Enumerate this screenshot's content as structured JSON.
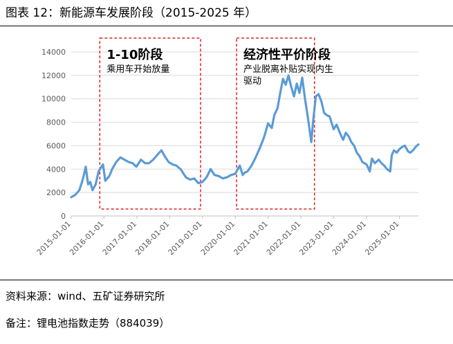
{
  "title": "图表 12：新能源车发展阶段（2015-2025 年）",
  "source": "资料来源：wind、五矿证券研究所",
  "note": "备注：锂电池指数走势（884039）",
  "colors": {
    "line": "#5b9bd5",
    "box": "#e02020",
    "grid": "#d9d9d9",
    "axis": "#bfbfbf"
  },
  "chart_data": {
    "type": "line",
    "title": "",
    "xlabel": "",
    "ylabel": "",
    "ylim": [
      0,
      14000
    ],
    "yticks": [
      0,
      2000,
      4000,
      6000,
      8000,
      10000,
      12000,
      14000
    ],
    "xticks": [
      "2015-01-01",
      "2016-01-01",
      "2017-01-01",
      "2018-01-01",
      "2019-01-01",
      "2020-01-01",
      "2021-01-01",
      "2022-01-01",
      "2023-01-01",
      "2024-01-01",
      "2025-01-01"
    ],
    "xrange": [
      "2015-01-01",
      "2025-07-31"
    ],
    "grid": "horizontal",
    "series": [
      {
        "name": "",
        "x": [
          "2015-01-01",
          "2015-02-15",
          "2015-04-01",
          "2015-05-01",
          "2015-05-25",
          "2015-06-12",
          "2015-07-08",
          "2015-08-01",
          "2015-08-26",
          "2015-09-30",
          "2015-11-01",
          "2015-12-20",
          "2016-01-15",
          "2016-02-28",
          "2016-04-01",
          "2016-05-15",
          "2016-07-01",
          "2016-08-15",
          "2016-10-01",
          "2016-11-15",
          "2016-12-25",
          "2017-02-15",
          "2017-04-01",
          "2017-05-15",
          "2017-07-01",
          "2017-08-15",
          "2017-10-01",
          "2017-11-15",
          "2017-12-20",
          "2018-02-01",
          "2018-03-15",
          "2018-05-01",
          "2018-06-30",
          "2018-08-15",
          "2018-10-01",
          "2018-11-15",
          "2018-12-31",
          "2019-02-15",
          "2019-04-01",
          "2019-05-15",
          "2019-07-01",
          "2019-08-15",
          "2019-10-01",
          "2019-11-15",
          "2019-12-31",
          "2020-02-20",
          "2020-03-23",
          "2020-04-15",
          "2020-05-15",
          "2020-06-30",
          "2020-08-15",
          "2020-09-30",
          "2020-11-15",
          "2020-12-31",
          "2021-02-10",
          "2021-03-10",
          "2021-04-15",
          "2021-05-15",
          "2021-06-15",
          "2021-07-15",
          "2021-08-15",
          "2021-09-15",
          "2021-10-15",
          "2021-11-15",
          "2021-12-15",
          "2022-01-15",
          "2022-02-15",
          "2022-03-15",
          "2022-04-26",
          "2022-05-15",
          "2022-06-15",
          "2022-07-15",
          "2022-08-15",
          "2022-09-15",
          "2022-10-15",
          "2022-11-15",
          "2022-12-31",
          "2023-02-01",
          "2023-03-15",
          "2023-04-15",
          "2023-05-15",
          "2023-06-15",
          "2023-07-15",
          "2023-08-15",
          "2023-09-15",
          "2023-10-15",
          "2023-11-15",
          "2023-12-31",
          "2024-01-20",
          "2024-02-05",
          "2024-03-01",
          "2024-04-01",
          "2024-05-15",
          "2024-06-15",
          "2024-07-15",
          "2024-08-15",
          "2024-09-20",
          "2024-10-08",
          "2024-11-01",
          "2024-12-01",
          "2025-01-01",
          "2025-02-01",
          "2025-03-01",
          "2025-04-08",
          "2025-05-01",
          "2025-06-01",
          "2025-07-01",
          "2025-07-31"
        ],
        "y": [
          1600,
          1800,
          2200,
          2900,
          3600,
          4200,
          2700,
          2900,
          2200,
          2700,
          3800,
          4400,
          3000,
          3400,
          4000,
          4600,
          5000,
          4800,
          4600,
          4500,
          4200,
          4800,
          4500,
          4500,
          4800,
          5200,
          5600,
          5000,
          4600,
          4400,
          4300,
          4000,
          3300,
          3100,
          3200,
          2800,
          2900,
          3300,
          4000,
          3500,
          3400,
          3200,
          3300,
          3500,
          3600,
          4300,
          3500,
          3700,
          3800,
          4300,
          5000,
          5800,
          6700,
          7900,
          7500,
          8600,
          9200,
          10500,
          11700,
          11200,
          12000,
          11000,
          10200,
          11300,
          10500,
          11800,
          10000,
          8600,
          6300,
          8000,
          10200,
          10400,
          9800,
          8800,
          8600,
          8500,
          7400,
          7800,
          7000,
          6500,
          7100,
          6800,
          6300,
          6000,
          5400,
          5100,
          4600,
          4400,
          4100,
          3800,
          4900,
          4500,
          4800,
          4500,
          4300,
          4000,
          3800,
          5200,
          5600,
          5400,
          5700,
          5900,
          6000,
          5500,
          5400,
          5600,
          5900,
          6100
        ]
      }
    ],
    "annotations": [
      {
        "x_start": "2015-11-15",
        "x_end": "2018-12-10",
        "heading": "1-10阶段",
        "text": "乘用车开始放量"
      },
      {
        "x_start": "2020-01-15",
        "x_end": "2022-05-31",
        "heading": "经济性平价阶段",
        "text": [
          "产业脱离补贴实现内生",
          "驱动"
        ]
      }
    ]
  }
}
